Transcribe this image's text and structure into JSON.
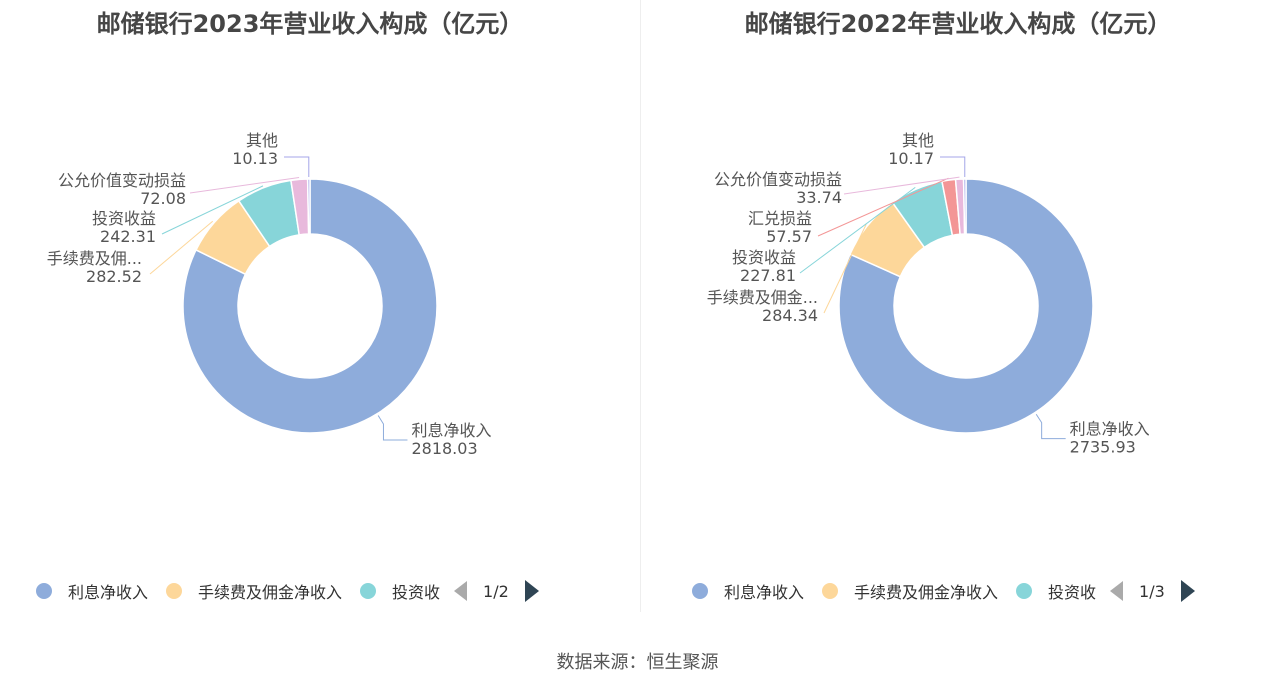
{
  "source": "数据来源：恒生聚源",
  "chart_data": [
    {
      "type": "pie",
      "title": "邮储银行2023年营业收入构成（亿元）",
      "categories": [
        "利息净收入",
        "手续费及佣...",
        "投资收益",
        "公允价值变动损益",
        "其他"
      ],
      "values": [
        2818.03,
        282.52,
        242.31,
        72.08,
        10.13
      ],
      "value_labels": [
        "2818.03",
        "282.52",
        "242.31",
        "72.08",
        "10.13"
      ],
      "colors": [
        "#8eacdb",
        "#fdd79a",
        "#87d5d9",
        "#e8b9dc",
        "#a4a6e8"
      ],
      "legend": {
        "items": [
          "利息净收入",
          "手续费及佣金净收入",
          "投资收"
        ],
        "page": "1/2",
        "placement": "bottom"
      }
    },
    {
      "type": "pie",
      "title": "邮储银行2022年营业收入构成（亿元）",
      "categories": [
        "利息净收入",
        "手续费及佣金...",
        "投资收益",
        "汇兑损益",
        "公允价值变动损益",
        "其他"
      ],
      "values": [
        2735.93,
        284.34,
        227.81,
        57.57,
        33.74,
        10.17
      ],
      "value_labels": [
        "2735.93",
        "284.34",
        "227.81",
        "57.57",
        "33.74",
        "10.17"
      ],
      "colors": [
        "#8eacdb",
        "#fdd79a",
        "#87d5d9",
        "#f39696",
        "#e8b9dc",
        "#a4a6e8"
      ],
      "legend": {
        "items": [
          "利息净收入",
          "手续费及佣金净收入",
          "投资收"
        ],
        "page": "1/3",
        "placement": "bottom"
      }
    }
  ]
}
